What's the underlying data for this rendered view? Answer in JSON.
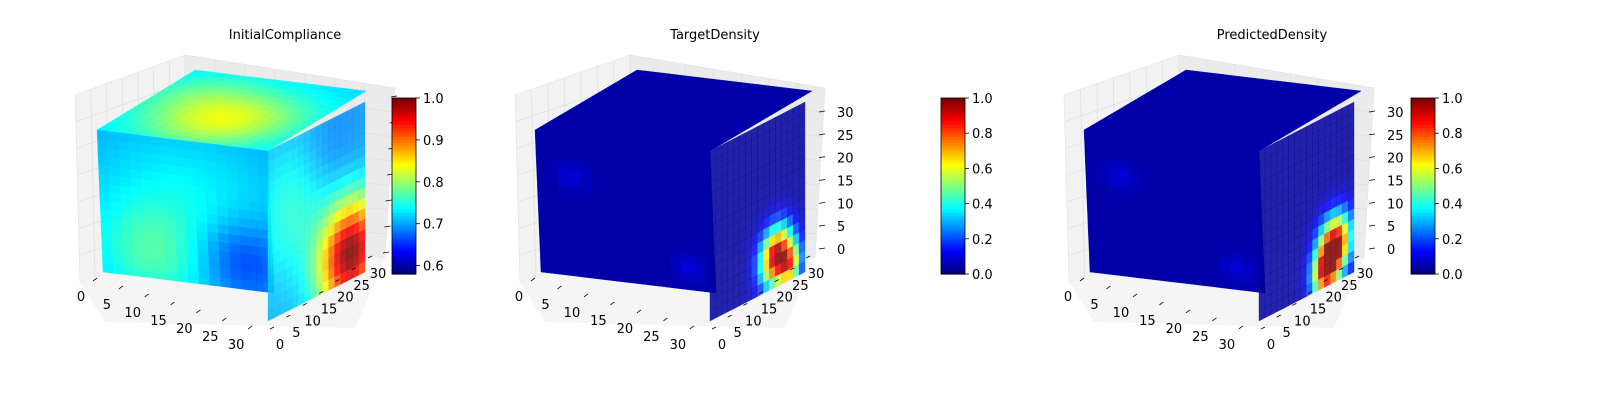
{
  "chart_data": [
    {
      "type": "heatmap",
      "title": "InitialCompliance",
      "colormap": "jet",
      "xlabel": "",
      "ylabel": "",
      "zlabel": "",
      "axes": {
        "x_ticks": [
          "0",
          "5",
          "10",
          "15",
          "20",
          "25",
          "30"
        ],
        "y_ticks": [
          "0",
          "5",
          "10",
          "15",
          "20",
          "25",
          "30"
        ],
        "z_ticks": [],
        "xlim": [
          0,
          32
        ],
        "ylim": [
          0,
          32
        ],
        "zlim": [
          0,
          32
        ]
      },
      "colorbar": {
        "min": 0.58,
        "max": 1.0,
        "ticks": [
          "0.6",
          "0.7",
          "0.8",
          "0.9",
          "1.0"
        ],
        "tick_values": [
          0.6,
          0.7,
          0.8,
          0.9,
          1.0
        ]
      },
      "faces": {
        "top": {
          "base": 0.72,
          "blobs": [
            [
              0.55,
              0.35,
              0.3,
              0.11
            ],
            [
              0.2,
              0.7,
              0.25,
              0.04
            ]
          ]
        },
        "front": {
          "base": 0.7,
          "blobs": [
            [
              0.5,
              0.5,
              0.4,
              0.04
            ],
            [
              0.3,
              0.85,
              0.25,
              0.05
            ],
            [
              0.8,
              0.8,
              0.2,
              -0.06
            ]
          ]
        },
        "side": {
          "base": 0.7,
          "blobs": [
            [
              0.3,
              0.4,
              0.3,
              0.06
            ],
            [
              0.85,
              0.85,
              0.22,
              0.3
            ],
            [
              0.6,
              0.2,
              0.25,
              -0.03
            ]
          ]
        }
      }
    },
    {
      "type": "heatmap",
      "title": "TargetDensity",
      "colormap": "jet",
      "xlabel": "",
      "ylabel": "",
      "zlabel": "",
      "axes": {
        "x_ticks": [
          "0",
          "5",
          "10",
          "15",
          "20",
          "25",
          "30"
        ],
        "y_ticks": [
          "0",
          "5",
          "10",
          "15",
          "20",
          "25",
          "30"
        ],
        "z_ticks": [
          "0",
          "5",
          "10",
          "15",
          "20",
          "25",
          "30"
        ],
        "xlim": [
          0,
          32
        ],
        "ylim": [
          0,
          32
        ],
        "zlim": [
          0,
          32
        ]
      },
      "colorbar": {
        "min": 0.0,
        "max": 1.0,
        "ticks": [
          "0.0",
          "0.2",
          "0.4",
          "0.6",
          "0.8",
          "1.0"
        ],
        "tick_values": [
          0.0,
          0.2,
          0.4,
          0.6,
          0.8,
          1.0
        ]
      },
      "faces": {
        "top": {
          "base": 0.04,
          "blobs": []
        },
        "front": {
          "base": 0.04,
          "blobs": [
            [
              0.2,
              0.3,
              0.06,
              0.05
            ],
            [
              0.85,
              0.85,
              0.06,
              0.05
            ]
          ]
        },
        "side": {
          "base": 0.03,
          "blobs": [
            [
              0.7,
              0.82,
              0.12,
              0.95
            ],
            [
              0.85,
              0.92,
              0.08,
              0.5
            ]
          ]
        }
      }
    },
    {
      "type": "heatmap",
      "title": "PredictedDensity",
      "colormap": "jet",
      "xlabel": "",
      "ylabel": "",
      "zlabel": "",
      "axes": {
        "x_ticks": [
          "0",
          "5",
          "10",
          "15",
          "20",
          "25",
          "30"
        ],
        "y_ticks": [
          "0",
          "5",
          "10",
          "15",
          "20",
          "25",
          "30"
        ],
        "z_ticks": [
          "0",
          "5",
          "10",
          "15",
          "20",
          "25",
          "30"
        ],
        "xlim": [
          0,
          32
        ],
        "ylim": [
          0,
          32
        ],
        "zlim": [
          0,
          32
        ]
      },
      "colorbar": {
        "min": 0.0,
        "max": 1.0,
        "ticks": [
          "0.0",
          "0.2",
          "0.4",
          "0.6",
          "0.8",
          "1.0"
        ],
        "tick_values": [
          0.0,
          0.2,
          0.4,
          0.6,
          0.8,
          1.0
        ]
      },
      "faces": {
        "top": {
          "base": 0.04,
          "blobs": []
        },
        "front": {
          "base": 0.04,
          "blobs": [
            [
              0.2,
              0.3,
              0.06,
              0.05
            ],
            [
              0.85,
              0.85,
              0.06,
              0.05
            ]
          ]
        },
        "side": {
          "base": 0.03,
          "blobs": [
            [
              0.8,
              0.78,
              0.12,
              0.95
            ],
            [
              0.7,
              0.92,
              0.1,
              0.7
            ]
          ]
        }
      }
    }
  ]
}
